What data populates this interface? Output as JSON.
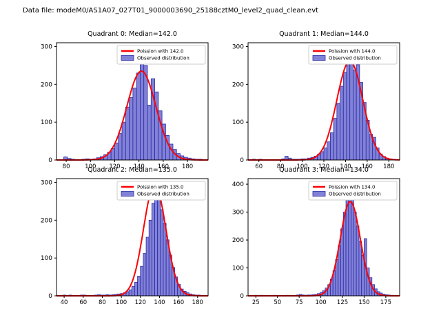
{
  "figure": {
    "title": "Data file: modeM0/AS1A07_027T01_9000003690_25188cztM0_level2_quad_clean.evt"
  },
  "colors": {
    "curve": "#ff0000",
    "bar_fill": "#8181d7",
    "bar_edge": "#2a2aa5",
    "axis": "#000000",
    "legend_border": "#cccccc",
    "background": "#ffffff"
  },
  "chart_data": [
    {
      "type": "histogram",
      "title": "Quadrant 0: Median=142.0",
      "legend": [
        {
          "label": "Poission with 142.0",
          "type": "line"
        },
        {
          "label": "Observed distribution",
          "type": "patch"
        }
      ],
      "xlim": [
        72,
        197
      ],
      "ylim": [
        0,
        310
      ],
      "xticks": [
        80,
        100,
        120,
        140,
        160,
        180
      ],
      "yticks": [
        0,
        100,
        200,
        300
      ],
      "bin_start": 75,
      "bin_width": 3,
      "heights": [
        0,
        8,
        4,
        2,
        0,
        0,
        2,
        3,
        2,
        3,
        6,
        9,
        14,
        20,
        30,
        45,
        70,
        100,
        140,
        165,
        190,
        230,
        295,
        250,
        145,
        215,
        180,
        130,
        95,
        65,
        42,
        28,
        17,
        11,
        7,
        5,
        3,
        2,
        2,
        1
      ],
      "fit": {
        "lambda": 142.0,
        "amplitude": 235
      }
    },
    {
      "type": "histogram",
      "title": "Quadrant 1: Median=144.0",
      "legend": [
        {
          "label": "Poission with 144.0",
          "type": "line"
        },
        {
          "label": "Observed distribution",
          "type": "patch"
        }
      ],
      "xlim": [
        50,
        190
      ],
      "ylim": [
        0,
        310
      ],
      "xticks": [
        60,
        80,
        100,
        120,
        140,
        160,
        180
      ],
      "yticks": [
        0,
        100,
        200,
        300
      ],
      "bin_start": 54,
      "bin_width": 3,
      "heights": [
        2,
        0,
        2,
        0,
        0,
        0,
        0,
        0,
        0,
        3,
        10,
        5,
        2,
        2,
        2,
        3,
        3,
        5,
        7,
        10,
        15,
        22,
        32,
        48,
        72,
        110,
        150,
        195,
        232,
        258,
        290,
        238,
        252,
        205,
        152,
        105,
        68,
        60,
        32,
        16,
        9,
        5,
        3,
        2,
        1
      ],
      "fit": {
        "lambda": 144.0,
        "amplitude": 262
      }
    },
    {
      "type": "histogram",
      "title": "Quadrant 2: Median=135.0",
      "legend": [
        {
          "label": "Poission with 135.0",
          "type": "line"
        },
        {
          "label": "Observed distribution",
          "type": "patch"
        }
      ],
      "xlim": [
        32,
        191
      ],
      "ylim": [
        0,
        310
      ],
      "xticks": [
        40,
        60,
        80,
        100,
        120,
        140,
        160,
        180
      ],
      "yticks": [
        0,
        100,
        200,
        300
      ],
      "bin_start": 36,
      "bin_width": 3,
      "heights": [
        0,
        2,
        0,
        2,
        0,
        0,
        0,
        2,
        2,
        0,
        0,
        0,
        2,
        3,
        2,
        2,
        3,
        2,
        3,
        4,
        5,
        6,
        8,
        11,
        16,
        25,
        36,
        52,
        78,
        112,
        155,
        200,
        245,
        290,
        262,
        228,
        192,
        148,
        108,
        75,
        50,
        30,
        18,
        12,
        8,
        5,
        3,
        2,
        2,
        1,
        1
      ],
      "fit": {
        "lambda": 135.0,
        "amplitude": 295
      }
    },
    {
      "type": "histogram",
      "title": "Quadrant 3: Median=134.0",
      "legend": [
        {
          "label": "Poission with 134.0",
          "type": "line"
        },
        {
          "label": "Observed distribution",
          "type": "patch"
        }
      ],
      "xlim": [
        16,
        191
      ],
      "ylim": [
        0,
        420
      ],
      "xticks": [
        25,
        50,
        75,
        100,
        125,
        150,
        175
      ],
      "yticks": [
        0,
        100,
        200,
        300,
        400
      ],
      "bin_start": 21,
      "bin_width": 3,
      "heights": [
        0,
        2,
        0,
        2,
        0,
        0,
        0,
        0,
        2,
        0,
        0,
        0,
        0,
        2,
        0,
        0,
        0,
        3,
        5,
        3,
        2,
        3,
        3,
        4,
        5,
        8,
        12,
        18,
        28,
        40,
        60,
        90,
        130,
        180,
        240,
        300,
        345,
        400,
        355,
        300,
        250,
        195,
        145,
        205,
        100,
        65,
        40,
        25,
        15,
        10,
        6,
        4,
        3,
        2,
        1,
        1
      ],
      "fit": {
        "lambda": 134.0,
        "amplitude": 338
      }
    }
  ]
}
